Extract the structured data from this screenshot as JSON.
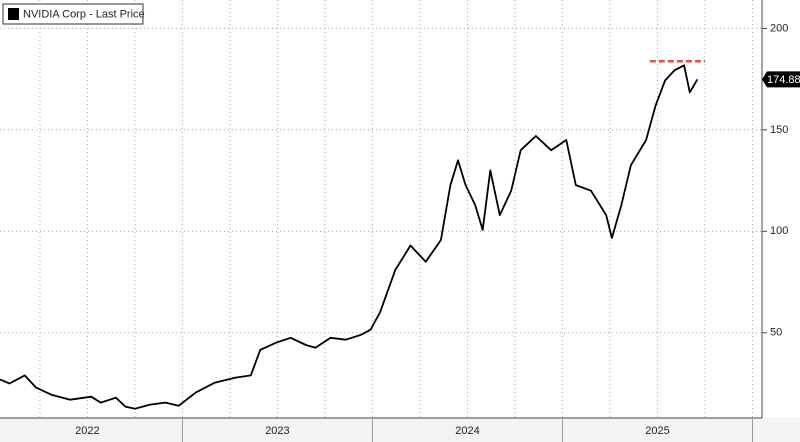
{
  "chart_data": {
    "type": "line",
    "series": [
      {
        "name": "NVIDIA Corp - Last Price",
        "color": "#000000",
        "x": [
          2022.04,
          2022.09,
          2022.17,
          2022.23,
          2022.31,
          2022.41,
          2022.52,
          2022.57,
          2022.65,
          2022.7,
          2022.75,
          2022.83,
          2022.91,
          2022.98,
          2023.07,
          2023.17,
          2023.28,
          2023.36,
          2023.41,
          2023.49,
          2023.57,
          2023.65,
          2023.7,
          2023.78,
          2023.86,
          2023.94,
          2023.99,
          2024.04,
          2024.12,
          2024.2,
          2024.28,
          2024.36,
          2024.41,
          2024.45,
          2024.49,
          2024.54,
          2024.58,
          2024.62,
          2024.67,
          2024.73,
          2024.78,
          2024.86,
          2024.94,
          2025.02,
          2025.07,
          2025.15,
          2025.23,
          2025.26,
          2025.31,
          2025.36,
          2025.44,
          2025.49,
          2025.54,
          2025.59,
          2025.64,
          2025.67,
          2025.71
        ],
        "values": [
          27,
          25,
          29,
          23,
          19.5,
          17,
          18.5,
          15.6,
          18,
          13.6,
          12.6,
          14.6,
          15.6,
          14,
          20.5,
          25.4,
          27.9,
          29,
          41.6,
          45,
          47.5,
          44,
          42.6,
          47.5,
          46.6,
          49,
          51.5,
          60,
          81,
          93,
          85,
          95.7,
          122.8,
          135,
          122.8,
          113,
          100.7,
          130,
          108,
          120,
          140,
          147,
          140,
          145,
          122.8,
          120,
          108,
          96.7,
          113,
          132.6,
          145,
          162,
          174.4,
          179.4,
          181.8,
          168.5,
          174.88
        ]
      }
    ],
    "last_price": 174.88,
    "high_line": {
      "value": 183.8,
      "color": "#e8503a",
      "x": [
        2025.46,
        2025.75
      ]
    },
    "xlim": [
      2022.04,
      2026.05
    ],
    "xticks": [
      {
        "value": 2022.5,
        "label": "2022"
      },
      {
        "value": 2023.5,
        "label": "2023"
      },
      {
        "value": 2024.5,
        "label": "2024"
      },
      {
        "value": 2025.5,
        "label": "2025"
      }
    ],
    "ylim": [
      8,
      214
    ],
    "yticks": [
      50,
      100,
      150,
      200
    ],
    "grid": true
  }
}
